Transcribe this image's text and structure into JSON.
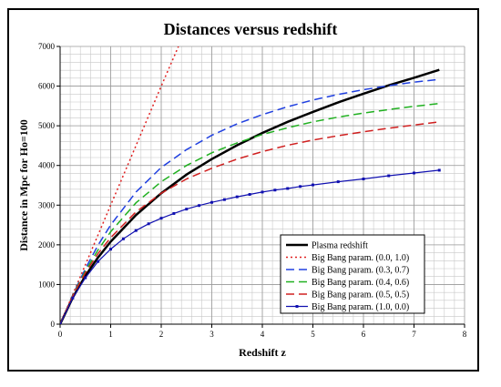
{
  "chart_data": {
    "type": "line",
    "title": "Distances versus redshift",
    "xlabel": "Redshift z",
    "ylabel": "Distance  in Mpc for Ho=100",
    "xlim": [
      0,
      8
    ],
    "ylim": [
      0,
      7000
    ],
    "xticks": [
      "0",
      "1",
      "2",
      "3",
      "4",
      "5",
      "6",
      "7",
      "8"
    ],
    "yticks": [
      "0",
      "1000",
      "2000",
      "3000",
      "4000",
      "5000",
      "6000",
      "7000"
    ],
    "grid": true,
    "legend_position": "bottom-right",
    "series": [
      {
        "name": "Plasma redshift",
        "color": "#000000",
        "dash": "solid",
        "width": 2.5,
        "markers": false,
        "x": [
          0,
          0.25,
          0.5,
          0.75,
          1,
          1.5,
          2,
          2.5,
          3,
          3.5,
          4,
          4.5,
          5,
          5.5,
          6,
          6.5,
          7,
          7.5
        ],
        "y": [
          0,
          670,
          1220,
          1680,
          2080,
          2750,
          3300,
          3770,
          4160,
          4510,
          4820,
          5100,
          5350,
          5590,
          5810,
          6020,
          6210,
          6410
        ]
      },
      {
        "name": "Big Bang param. (0.0, 1.0)",
        "color": "#e02020",
        "dash": "2,3",
        "width": 1.5,
        "markers": false,
        "x": [
          0,
          0.5,
          1,
          1.5,
          2,
          2.34
        ],
        "y": [
          0,
          1500,
          3000,
          4500,
          6000,
          7000
        ]
      },
      {
        "name": "Big Bang param. (0.3, 0.7)",
        "color": "#2040e0",
        "dash": "9,5",
        "width": 1.5,
        "markers": false,
        "x": [
          0,
          0.25,
          0.5,
          0.75,
          1,
          1.5,
          2,
          2.5,
          3,
          3.5,
          4,
          4.5,
          5,
          5.5,
          6,
          6.5,
          7,
          7.5
        ],
        "y": [
          0,
          740,
          1400,
          1990,
          2500,
          3330,
          3950,
          4400,
          4760,
          5050,
          5280,
          5480,
          5650,
          5790,
          5910,
          6010,
          6100,
          6170
        ]
      },
      {
        "name": "Big Bang param. (0.4, 0.6)",
        "color": "#20b020",
        "dash": "9,5",
        "width": 1.5,
        "markers": false,
        "x": [
          0,
          0.25,
          0.5,
          0.75,
          1,
          1.5,
          2,
          2.5,
          3,
          3.5,
          4,
          4.5,
          5,
          5.5,
          6,
          6.5,
          7,
          7.5
        ],
        "y": [
          0,
          730,
          1340,
          1870,
          2330,
          3060,
          3590,
          4000,
          4320,
          4570,
          4780,
          4950,
          5100,
          5220,
          5320,
          5410,
          5490,
          5560
        ]
      },
      {
        "name": "Big Bang param. (0.5, 0.5)",
        "color": "#d02020",
        "dash": "9,5",
        "width": 1.5,
        "markers": false,
        "x": [
          0,
          0.25,
          0.5,
          0.75,
          1,
          1.5,
          2,
          2.5,
          3,
          3.5,
          4,
          4.5,
          5,
          5.5,
          6,
          6.5,
          7,
          7.5
        ],
        "y": [
          0,
          715,
          1300,
          1780,
          2180,
          2830,
          3300,
          3660,
          3930,
          4160,
          4350,
          4510,
          4640,
          4750,
          4850,
          4940,
          5020,
          5100
        ]
      },
      {
        "name": "Big Bang param. (1.0, 0.0)",
        "color": "#1010b0",
        "dash": "solid",
        "width": 1.2,
        "markers": true,
        "x": [
          0,
          0.25,
          0.5,
          0.75,
          1,
          1.25,
          1.5,
          1.75,
          2,
          2.25,
          2.5,
          2.75,
          3,
          3.25,
          3.5,
          3.75,
          4,
          4.25,
          4.5,
          4.75,
          5,
          5.5,
          6,
          6.5,
          7,
          7.5
        ],
        "y": [
          0,
          660,
          1170,
          1580,
          1890,
          2150,
          2360,
          2530,
          2670,
          2790,
          2900,
          2990,
          3070,
          3140,
          3210,
          3270,
          3330,
          3380,
          3420,
          3470,
          3510,
          3590,
          3660,
          3740,
          3810,
          3880
        ]
      }
    ]
  }
}
